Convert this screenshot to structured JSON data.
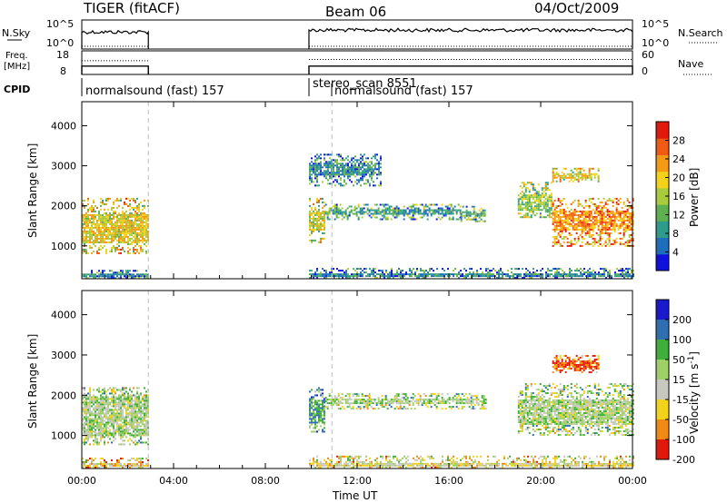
{
  "header": {
    "station": "TIGER (fitACF)",
    "beam": "Beam 06",
    "date": "04/Oct/2009"
  },
  "colors": {
    "gap_line": "#bbbbbb",
    "frame": "#000000"
  },
  "chart_data": [
    {
      "type": "line",
      "panel": "nsky-nsearch",
      "left_label": "N.Sky",
      "right_label": "N.Search",
      "left_ticks": [
        "10^5",
        "10^0"
      ],
      "right_ticks": [
        "10^5",
        "10^0"
      ],
      "segments": [
        {
          "x_hours": [
            0.0,
            2.9
          ],
          "nsky_level": 0.72
        },
        {
          "x_hours": [
            9.9,
            24.0
          ],
          "nsky_level": 0.8
        }
      ]
    },
    {
      "type": "line",
      "panel": "freq-nave",
      "left_label": "Freq.",
      "left_unit": "[MHz]",
      "right_label": "Nave",
      "left_ticks": [
        "18",
        "8"
      ],
      "right_ticks": [
        "60",
        "0"
      ],
      "ylim_left": [
        8,
        18
      ],
      "ylim_right": [
        0,
        60
      ],
      "segments": [
        {
          "x_hours": [
            0.0,
            2.9
          ],
          "freq_mhz": 10,
          "nave": 35
        },
        {
          "x_hours": [
            9.9,
            24.0
          ],
          "freq_mhz": 10,
          "nave": 38
        }
      ]
    },
    {
      "type": "table",
      "panel": "cpid",
      "label": "CPID",
      "entries": [
        {
          "text": "normalsound (fast) 157",
          "start": 0.0
        },
        {
          "text": "stereo_scan 8551",
          "start": 9.9
        },
        {
          "text": "normalsound (fast) 157",
          "start": 10.9
        }
      ]
    },
    {
      "type": "heatmap",
      "panel": "power",
      "ylabel": "Slant Range [km]",
      "yticks": [
        1000,
        2000,
        3000,
        4000
      ],
      "ylim": [
        180,
        4600
      ],
      "colorbar_label": "Power [dB]",
      "colorbar_ticks": [
        4,
        8,
        12,
        16,
        20,
        24,
        28
      ],
      "colorbar_range": [
        0,
        32
      ],
      "colormap": [
        "#1010dd",
        "#1f6ebc",
        "#2f9b8a",
        "#5fb050",
        "#a8cc3c",
        "#f2d21a",
        "#f59a14",
        "#f05a12",
        "#e01a0a"
      ],
      "regions": [
        {
          "t": [
            0.0,
            2.9
          ],
          "r": [
            800,
            2200
          ],
          "core": [
            1100,
            1800
          ],
          "level": 0.6
        },
        {
          "t": [
            9.9,
            10.6
          ],
          "r": [
            1100,
            2200
          ],
          "core": [
            1400,
            1900
          ],
          "level": 0.55
        },
        {
          "t": [
            10.6,
            16.5
          ],
          "r": [
            1650,
            2050
          ],
          "core": [
            1800,
            1950
          ],
          "level": 0.3
        },
        {
          "t": [
            16.5,
            17.6
          ],
          "r": [
            1600,
            2000
          ],
          "core": [
            1750,
            1900
          ],
          "level": 0.35
        },
        {
          "t": [
            19.0,
            20.5
          ],
          "r": [
            1700,
            2600
          ],
          "core": [
            1900,
            2300
          ],
          "level": 0.45
        },
        {
          "t": [
            20.5,
            24.0
          ],
          "r": [
            1000,
            2200
          ],
          "core": [
            1400,
            1900
          ],
          "level": 0.75
        },
        {
          "t": [
            20.5,
            22.5
          ],
          "r": [
            2600,
            2950
          ],
          "core": [
            2700,
            2850
          ],
          "level": 0.6
        },
        {
          "t": [
            0.0,
            2.9
          ],
          "r": [
            200,
            400
          ],
          "core": [
            250,
            330
          ],
          "level": 0.25
        },
        {
          "t": [
            9.9,
            24.0
          ],
          "r": [
            200,
            450
          ],
          "core": [
            250,
            350
          ],
          "level": 0.25
        },
        {
          "t": [
            9.9,
            13.0
          ],
          "r": [
            2500,
            3300
          ],
          "core": [
            2800,
            3100
          ],
          "level": 0.25
        }
      ]
    },
    {
      "type": "heatmap",
      "panel": "velocity",
      "ylabel": "Slant Range [km]",
      "yticks": [
        1000,
        2000,
        3000,
        4000
      ],
      "ylim": [
        180,
        4600
      ],
      "colorbar_label": "Velocity [m s^-1]",
      "colorbar_ticks": [
        200,
        100,
        50,
        15,
        -15,
        -50,
        -100,
        -200
      ],
      "colormap": [
        "#1a1acc",
        "#2f6fb0",
        "#3fae3a",
        "#9fd068",
        "#c8c8c0",
        "#f2d21a",
        "#f08a12",
        "#e01a0a"
      ],
      "regions": [
        {
          "t": [
            0.0,
            2.9
          ],
          "r": [
            800,
            2200
          ],
          "core": [
            1000,
            2000
          ],
          "level": 0.48
        },
        {
          "t": [
            9.9,
            10.6
          ],
          "r": [
            1100,
            2200
          ],
          "core": [
            1300,
            1900
          ],
          "level": 0.3
        },
        {
          "t": [
            10.6,
            17.6
          ],
          "r": [
            1650,
            2050
          ],
          "core": [
            1780,
            1950
          ],
          "level": 0.48
        },
        {
          "t": [
            19.0,
            24.0
          ],
          "r": [
            1000,
            2300
          ],
          "core": [
            1300,
            1900
          ],
          "level": 0.48
        },
        {
          "t": [
            20.5,
            22.5
          ],
          "r": [
            2550,
            3000
          ],
          "core": [
            2650,
            2900
          ],
          "level": 0.9
        },
        {
          "t": [
            0.0,
            2.9
          ],
          "r": [
            200,
            450
          ],
          "core": [
            250,
            350
          ],
          "level": 0.65
        },
        {
          "t": [
            9.9,
            24.0
          ],
          "r": [
            200,
            500
          ],
          "core": [
            250,
            350
          ],
          "level": 0.6
        }
      ]
    }
  ],
  "x_axis": {
    "label": "Time UT",
    "ticks": [
      "00:00",
      "04:00",
      "08:00",
      "12:00",
      "16:00",
      "20:00",
      "00:00"
    ],
    "tick_hours": [
      0,
      4,
      8,
      12,
      16,
      20,
      24
    ],
    "xlim": [
      0,
      24
    ]
  }
}
